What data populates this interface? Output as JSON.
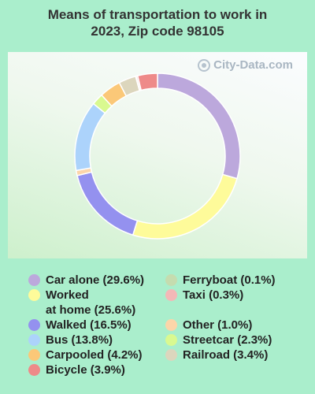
{
  "title_line1": "Means of transportation to work in",
  "title_line2": "2023, Zip code 98105",
  "watermark": "City-Data.com",
  "chart_data": {
    "type": "pie",
    "variant": "donut",
    "title": "Means of transportation to work in 2023, Zip code 98105",
    "slices": [
      {
        "label": "Car alone (29.6%)",
        "value": 29.6,
        "color": "#bca8dc"
      },
      {
        "label": "Worked at home (25.6%)",
        "lines": [
          "Worked",
          "at home (25.6%)"
        ],
        "value": 25.6,
        "color": "#fefb9a"
      },
      {
        "label": "Walked (16.5%)",
        "value": 16.5,
        "color": "#9491ef"
      },
      {
        "label": "Other (1.0%)",
        "value": 1.0,
        "color": "#fcd5a9"
      },
      {
        "label": "Bus (13.8%)",
        "value": 13.8,
        "color": "#acd3fb"
      },
      {
        "label": "Streetcar (2.3%)",
        "value": 2.3,
        "color": "#d9f990"
      },
      {
        "label": "Carpooled (4.2%)",
        "value": 4.2,
        "color": "#fbc878"
      },
      {
        "label": "Railroad (3.4%)",
        "value": 3.4,
        "color": "#dcd6bd"
      },
      {
        "label": "Ferryboat (0.1%)",
        "value": 0.1,
        "color": "#c5dcaf"
      },
      {
        "label": "Taxi (0.3%)",
        "value": 0.3,
        "color": "#f4b8b7"
      },
      {
        "label": "Bicycle (3.9%)",
        "value": 3.9,
        "color": "#ee8a89"
      }
    ],
    "legend_order": [
      0,
      1,
      2,
      4,
      6,
      10,
      8,
      9,
      3,
      5,
      7
    ]
  }
}
